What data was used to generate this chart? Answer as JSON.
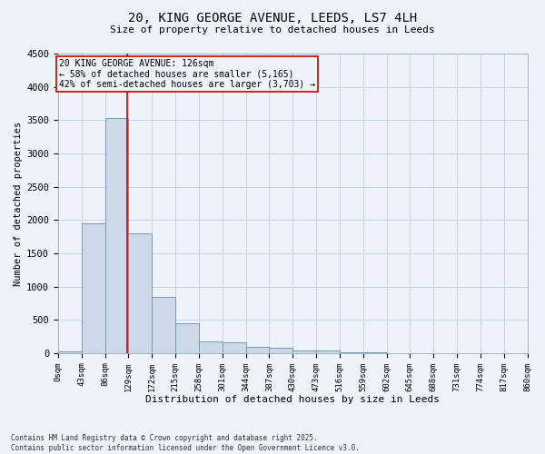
{
  "title_line1": "20, KING GEORGE AVENUE, LEEDS, LS7 4LH",
  "title_line2": "Size of property relative to detached houses in Leeds",
  "xlabel": "Distribution of detached houses by size in Leeds",
  "ylabel": "Number of detached properties",
  "bar_values": [
    30,
    1950,
    3530,
    1800,
    850,
    450,
    175,
    165,
    90,
    80,
    45,
    35,
    5,
    5,
    2,
    2,
    1,
    1,
    0,
    0
  ],
  "bin_edges": [
    0,
    43,
    86,
    129,
    172,
    215,
    258,
    301,
    344,
    387,
    430,
    473,
    516,
    559,
    602,
    645,
    688,
    731,
    774,
    817,
    860
  ],
  "tick_labels": [
    "0sqm",
    "43sqm",
    "86sqm",
    "129sqm",
    "172sqm",
    "215sqm",
    "258sqm",
    "301sqm",
    "344sqm",
    "387sqm",
    "430sqm",
    "473sqm",
    "516sqm",
    "559sqm",
    "602sqm",
    "645sqm",
    "688sqm",
    "731sqm",
    "774sqm",
    "817sqm",
    "860sqm"
  ],
  "bar_color": "#ccd9e8",
  "bar_edge_color": "#7799bb",
  "ylim": [
    0,
    4500
  ],
  "yticks": [
    0,
    500,
    1000,
    1500,
    2000,
    2500,
    3000,
    3500,
    4000,
    4500
  ],
  "vline_x": 126,
  "vline_color": "#cc0000",
  "annotation_title": "20 KING GEORGE AVENUE: 126sqm",
  "annotation_line2": "← 58% of detached houses are smaller (5,165)",
  "annotation_line3": "42% of semi-detached houses are larger (3,703) →",
  "annotation_box_color": "#cc0000",
  "footer_line1": "Contains HM Land Registry data © Crown copyright and database right 2025.",
  "footer_line2": "Contains public sector information licensed under the Open Government Licence v3.0.",
  "grid_color": "#c5d5eb",
  "bg_color": "#eef2fb"
}
